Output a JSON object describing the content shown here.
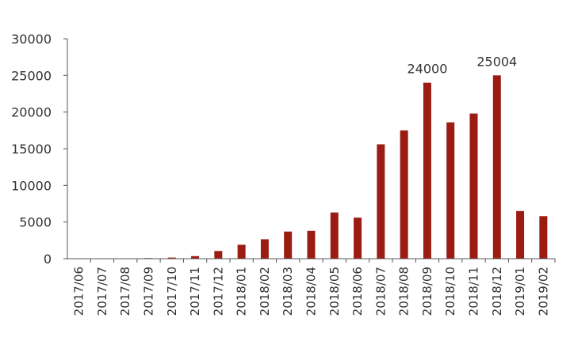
{
  "chart_data": {
    "type": "bar",
    "title": "",
    "xlabel": "",
    "ylabel": "",
    "categories": [
      "2017/06",
      "2017/07",
      "2017/08",
      "2017/09",
      "2017/10",
      "2017/11",
      "2017/12",
      "2018/01",
      "2018/02",
      "2018/03",
      "2018/04",
      "2018/05",
      "2018/06",
      "2018/07",
      "2018/08",
      "2018/09",
      "2018/10",
      "2018/11",
      "2018/12",
      "2019/01",
      "2019/02"
    ],
    "values": [
      0,
      5,
      30,
      80,
      150,
      350,
      1050,
      1900,
      2650,
      3700,
      3800,
      6300,
      5600,
      15600,
      17500,
      24000,
      18600,
      19800,
      25004,
      6500,
      5800
    ],
    "ylim": [
      0,
      30000
    ],
    "yticks": [
      "0",
      "5000",
      "10000",
      "15000",
      "20000",
      "25000",
      "30000"
    ],
    "bar_color": "#9b1c12",
    "grid": false,
    "legend": "none",
    "data_labels": [
      {
        "category": "2018/09",
        "text": "24000"
      },
      {
        "category": "2018/12",
        "text": "25004"
      }
    ]
  }
}
